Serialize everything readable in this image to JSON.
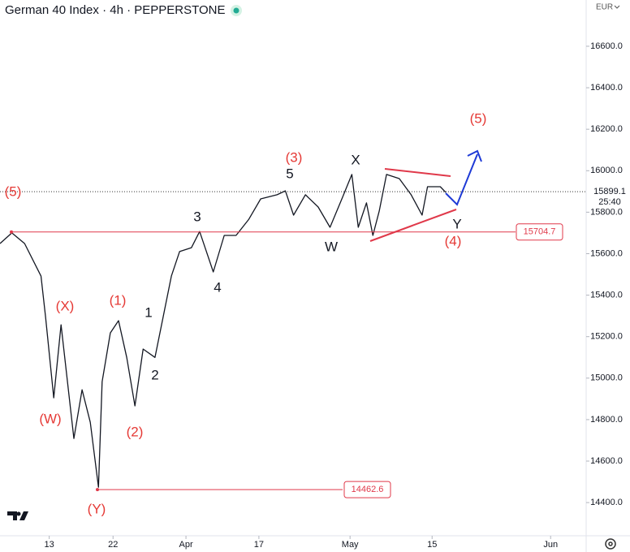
{
  "header": {
    "symbol": "German 40 Index · 4h · PEPPERSTONE",
    "currency": "EUR"
  },
  "chart_data": {
    "type": "line",
    "color": "#131722",
    "x": [
      -5.4,
      -4.1,
      -2.7,
      -0.9,
      -0.4,
      0.5,
      1.3,
      2.0,
      2.7,
      3.6,
      4.5,
      5.4,
      5.8,
      6.7,
      7.6,
      8.5,
      9.4,
      10.3,
      11.6,
      12.5,
      13.4,
      14.3,
      15.6,
      16.5,
      17.4,
      18.0,
      19.2,
      20.5,
      21.9,
      23.2,
      25.0,
      25.9,
      26.8,
      28.1,
      29.5,
      30.8,
      32.1,
      33.2,
      33.9,
      34.8,
      35.5,
      36.2,
      37.0,
      38.4,
      39.7,
      40.9,
      41.5,
      42.9,
      43.5
    ],
    "values": [
      15649,
      15700,
      15649,
      15492,
      15296,
      14905,
      15257,
      14983,
      14709,
      14944,
      14787,
      14474,
      14983,
      15218,
      15277,
      15100,
      14866,
      15140,
      15100,
      15296,
      15492,
      15610,
      15629,
      15707,
      15590,
      15512,
      15688,
      15688,
      15766,
      15864,
      15884,
      15903,
      15786,
      15884,
      15825,
      15727,
      15864,
      15982,
      15727,
      15845,
      15688,
      15805,
      15982,
      15962,
      15884,
      15786,
      15923,
      15923,
      15895
    ],
    "xlim": [
      -5.4,
      58.9
    ],
    "xticks": [
      {
        "value": 0,
        "label": "13"
      },
      {
        "value": 7,
        "label": "22"
      },
      {
        "value": 15,
        "label": "Apr"
      },
      {
        "value": 23,
        "label": "17"
      },
      {
        "value": 33,
        "label": "May"
      },
      {
        "value": 42,
        "label": "15"
      },
      {
        "value": 55,
        "label": "Jun"
      }
    ],
    "ylim": [
      14240,
      16823
    ],
    "yticks": [
      {
        "value": 14400,
        "label": "14400.0"
      },
      {
        "value": 14600,
        "label": "14600.0"
      },
      {
        "value": 14800,
        "label": "14800.0"
      },
      {
        "value": 15000,
        "label": "15000.0"
      },
      {
        "value": 15200,
        "label": "15200.0"
      },
      {
        "value": 15400,
        "label": "15400.0"
      },
      {
        "value": 15600,
        "label": "15600.0"
      },
      {
        "value": 15800,
        "label": "15800.0"
      },
      {
        "value": 16000,
        "label": "16000.0"
      },
      {
        "value": 16200,
        "label": "16200.0"
      },
      {
        "value": 16400,
        "label": "16400.0"
      },
      {
        "value": 16600,
        "label": "16600.0"
      }
    ],
    "grid": false,
    "levels": [
      15704.7,
      14462.6
    ],
    "level_color": "#e0394a",
    "last_price": 15899.1,
    "countdown": "25:40",
    "annotations": [
      {
        "text": "(5)",
        "color": "#e53935"
      },
      {
        "text": "(X)",
        "color": "#e53935"
      },
      {
        "text": "(W)",
        "color": "#e53935"
      },
      {
        "text": "(Y)",
        "color": "#e53935"
      },
      {
        "text": "(1)",
        "color": "#e53935"
      },
      {
        "text": "(2)",
        "color": "#e53935"
      },
      {
        "text": "1",
        "color": "#131722"
      },
      {
        "text": "2",
        "color": "#131722"
      },
      {
        "text": "3",
        "color": "#131722"
      },
      {
        "text": "4",
        "color": "#131722"
      },
      {
        "text": "(3)",
        "color": "#e53935"
      },
      {
        "text": "5",
        "color": "#131722"
      },
      {
        "text": "X",
        "color": "#131722"
      },
      {
        "text": "W",
        "color": "#131722"
      },
      {
        "text": "Y",
        "color": "#131722"
      },
      {
        "text": "(4)",
        "color": "#e53935"
      },
      {
        "text": "(5)",
        "color": "#e53935"
      }
    ]
  }
}
